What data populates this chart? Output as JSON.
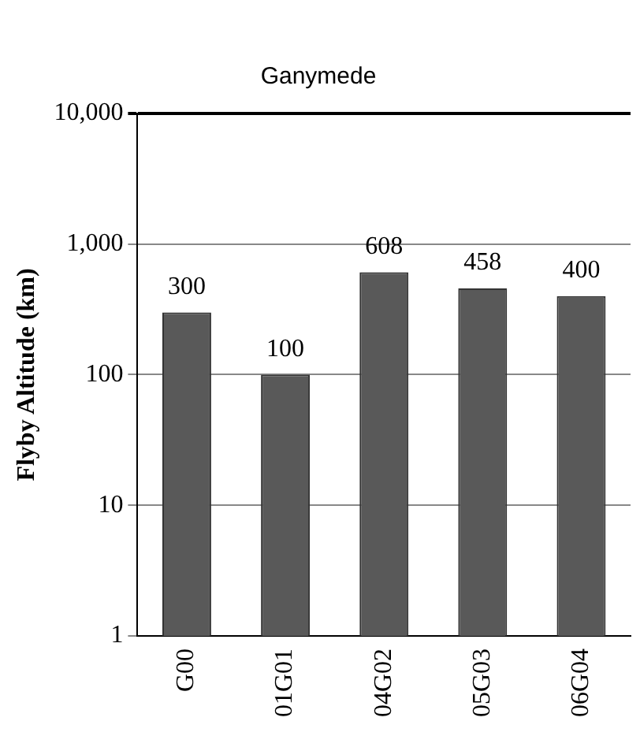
{
  "chart_data": {
    "type": "bar",
    "title": "Ganymede",
    "ylabel": "Flyby Altitude (km)",
    "categories": [
      "G00",
      "01G01",
      "04G02",
      "05G03",
      "06G04"
    ],
    "values": [
      300,
      100,
      608,
      458,
      400
    ],
    "color": "#595959",
    "log": true,
    "ylim": [
      1,
      10000
    ],
    "yticks": [
      1,
      10,
      100,
      {
        "value": 1000,
        "label": "1,000"
      },
      {
        "value": 10000,
        "label": "10,000"
      }
    ],
    "grid": "y",
    "legend": false,
    "data_labels": true
  }
}
